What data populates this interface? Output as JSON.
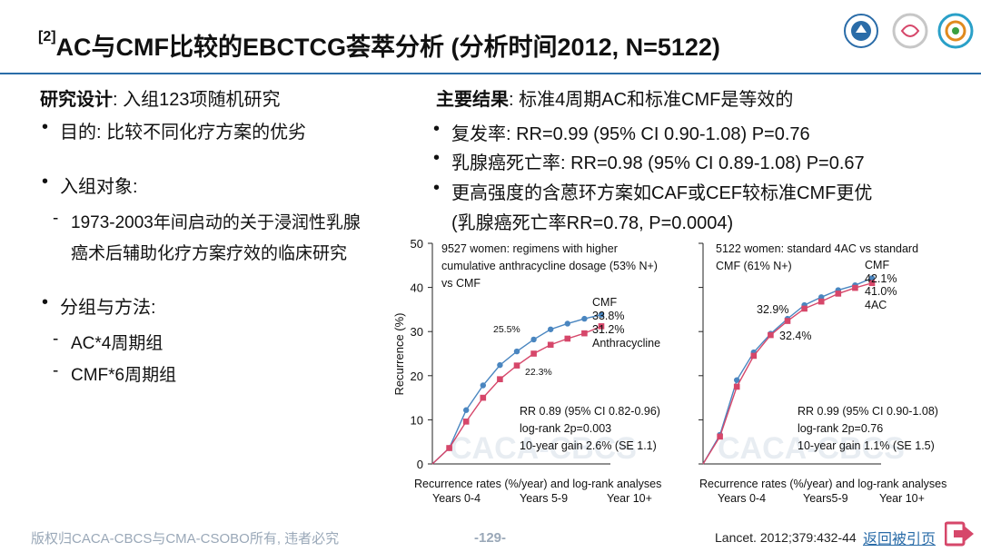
{
  "slide": {
    "title_sup": "[2]",
    "title": "AC与CMF比较的EBCTCG荟萃分析 (分析时间2012, N=5122)"
  },
  "left": {
    "design_label": "研究设计",
    "design_text": ": 入组123项随机研究",
    "purpose": "目的: 比较不同化疗方案的优劣",
    "subjects": "入组对象:",
    "subjects_detail_1": "1973-2003年间启动的关于浸润性乳腺",
    "subjects_detail_2": "癌术后辅助化疗方案疗效的临床研究",
    "groups": "分组与方法:",
    "group_1": "AC*4周期组",
    "group_2": "CMF*6周期组"
  },
  "right": {
    "results_label": "主要结果",
    "results_text": ": 标准4周期AC和标准CMF是等效的",
    "item_1": "复发率: RR=0.99 (95% CI 0.90-1.08) P=0.76",
    "item_2": "乳腺癌死亡率: RR=0.98 (95% CI 0.89-1.08) P=0.67",
    "item_3a": "更高强度的含蒽环方案如CAF或CEF较标准CMF更优",
    "item_3b": "(乳腺癌死亡率RR=0.78, P=0.0004)"
  },
  "footer": {
    "copyright": "版权归CACA-CBCS与CMA-CSOBO所有, 违者必究",
    "page": "-129-",
    "citation": "Lancet. 2012;379:432-44",
    "back": "返回被引页"
  },
  "watermark": "CACA-CBCS",
  "colors": {
    "blue": "#4a86c0",
    "red": "#d6476a",
    "accent": "#2a6ca8"
  },
  "icons": {
    "back": "arrow-right-icon"
  },
  "chart_data": [
    {
      "type": "line",
      "ylabel": "Recurrence (%)",
      "yticks": [
        "0",
        "10",
        "20",
        "30",
        "40",
        "50"
      ],
      "ylim": [
        0,
        50
      ],
      "xlim": [
        0,
        10
      ],
      "description": "9527 women: regimens with higher cumulative anthracycline dosage (53% N+) vs CMF",
      "desc_lines": [
        "9527 women: regimens with higher",
        "cumulative anthracycline dosage (53% N+)",
        "vs CMF"
      ],
      "series": [
        {
          "name": "CMF",
          "color": "#4a86c0",
          "marker": "circle",
          "x": [
            0,
            1,
            2,
            3,
            4,
            5,
            6,
            7,
            8,
            9,
            10
          ],
          "values": [
            0,
            3.6,
            12.2,
            17.8,
            22.4,
            25.5,
            28.2,
            30.5,
            31.8,
            32.9,
            33.8
          ]
        },
        {
          "name": "Anthracycline",
          "color": "#d6476a",
          "marker": "square",
          "x": [
            0,
            1,
            2,
            3,
            4,
            5,
            6,
            7,
            8,
            9,
            10
          ],
          "values": [
            0,
            3.6,
            9.6,
            15.0,
            19.2,
            22.3,
            25.0,
            27.0,
            28.4,
            29.6,
            31.2
          ]
        }
      ],
      "annotations": {
        "cmf_label": "CMF",
        "cmf_end": "33.8%",
        "other_end": "31.2%",
        "other_label": "Anthracycline",
        "mid_top": "25.5%",
        "mid_bottom": "22.3%",
        "stats": [
          "RR 0.89 (95% CI 0.82-0.96)",
          "log-rank 2p=0.003",
          "10-year gain 2.6% (SE 1.1)"
        ]
      },
      "footer_text": "Recurrence rates (%/year) and log-rank analyses",
      "periods": [
        "Years 0-4",
        "Years 5-9",
        "Year 10+"
      ]
    },
    {
      "type": "line",
      "ylim": [
        0,
        50
      ],
      "xlim": [
        0,
        10
      ],
      "description": "5122 women: standard 4AC vs standard CMF (61% N+)",
      "desc_lines": [
        "5122 women: standard 4AC vs standard",
        "CMF (61% N+)"
      ],
      "series": [
        {
          "name": "CMF",
          "color": "#4a86c0",
          "marker": "circle",
          "x": [
            0,
            1,
            2,
            3,
            4,
            5,
            6,
            7,
            8,
            9,
            10
          ],
          "values": [
            0,
            6.6,
            19.0,
            25.3,
            29.5,
            32.9,
            36.0,
            37.8,
            39.4,
            40.5,
            42.1
          ]
        },
        {
          "name": "4AC",
          "color": "#d6476a",
          "marker": "square",
          "x": [
            0,
            1,
            2,
            3,
            4,
            5,
            6,
            7,
            8,
            9,
            10
          ],
          "values": [
            0,
            6.2,
            17.5,
            24.5,
            29.2,
            32.4,
            35.2,
            36.8,
            38.6,
            39.9,
            41.0
          ]
        }
      ],
      "annotations": {
        "cmf_label": "CMF",
        "cmf_end": "42.1%",
        "other_end": "41.0%",
        "other_label": "4AC",
        "mid_top": "32.9%",
        "mid_bottom": "32.4%",
        "stats": [
          "RR 0.99 (95% CI 0.90-1.08)",
          "log-rank 2p=0.76",
          "10-year gain 1.1% (SE 1.5)"
        ]
      },
      "footer_text": "Recurrence rates (%/year) and log-rank analyses",
      "periods": [
        "Years 0-4",
        "Years5-9",
        "Year 10+"
      ]
    }
  ]
}
